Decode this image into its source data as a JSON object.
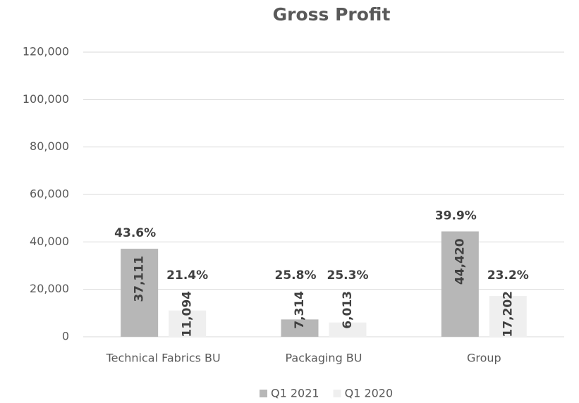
{
  "chart_data": {
    "type": "bar",
    "title": "Gross Profit",
    "categories": [
      "Technical Fabrics BU",
      "Packaging BU",
      "Group"
    ],
    "series": [
      {
        "name": "Q1 2021",
        "color": "#b7b7b7",
        "values": [
          37111,
          7314,
          44420
        ],
        "value_labels": [
          "37,111",
          "7,314",
          "44,420"
        ],
        "margin_labels": [
          "43.6%",
          "25.8%",
          "39.9%"
        ]
      },
      {
        "name": "Q1 2020",
        "color": "#efefef",
        "values": [
          11094,
          6013,
          17202
        ],
        "value_labels": [
          "11,094",
          "6,013",
          "17,202"
        ],
        "margin_labels": [
          "21.4%",
          "25.3%",
          "23.2%"
        ]
      }
    ],
    "ylim": [
      0,
      120000
    ],
    "yticks": [
      0,
      {
        "value": 20000,
        "label": "20,000"
      },
      {
        "value": 40000,
        "label": "40,000"
      },
      {
        "value": 60000,
        "label": "60,000"
      },
      {
        "value": 80000,
        "label": "80,000"
      },
      {
        "value": 100000,
        "label": "100,000"
      },
      {
        "value": 120000,
        "label": "120,000"
      }
    ],
    "grid": true,
    "legend": "bottom"
  }
}
